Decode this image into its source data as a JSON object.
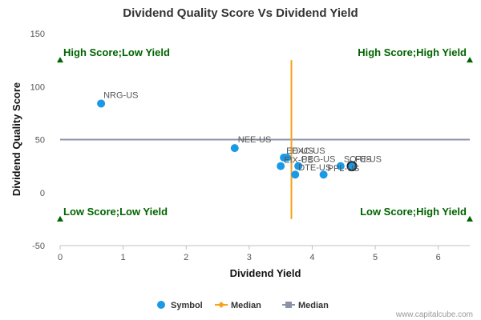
{
  "chart_data": {
    "type": "scatter",
    "title": "Dividend Quality Score Vs Dividend Yield",
    "xlabel": "Dividend Yield",
    "ylabel": "Dividend Quality Score",
    "xlim": [
      0,
      6.5
    ],
    "ylim": [
      -50,
      150
    ],
    "xticks": [
      0,
      1,
      2,
      3,
      4,
      5,
      6
    ],
    "yticks": [
      -50,
      0,
      50,
      100,
      150
    ],
    "grid": false,
    "points": [
      {
        "label": "NRG-US",
        "x": 0.65,
        "y": 84
      },
      {
        "label": "NEE-US",
        "x": 2.77,
        "y": 42
      },
      {
        "label": "ED-US",
        "x": 3.55,
        "y": 33
      },
      {
        "label": "EXC-US",
        "x": 3.6,
        "y": 33
      },
      {
        "label": "EIX-US",
        "x": 3.5,
        "y": 25
      },
      {
        "label": "PEG-US",
        "x": 3.78,
        "y": 25
      },
      {
        "label": "DTE-US",
        "x": 3.73,
        "y": 17
      },
      {
        "label": "PPL-US",
        "x": 4.18,
        "y": 17
      },
      {
        "label": "SO-US",
        "x": 4.45,
        "y": 25
      },
      {
        "label": "FE-US",
        "x": 4.63,
        "y": 25,
        "highlight": true
      }
    ],
    "median_x": 3.67,
    "median_x_range": [
      -25,
      125
    ],
    "median_y": 50,
    "quadrant_labels": {
      "top_left": "High Score;Low Yield",
      "top_right": "High Score;High Yield",
      "bottom_left": "Low Score;Low Yield",
      "bottom_right": "Low Score;High Yield"
    },
    "legend": [
      {
        "name": "Symbol",
        "kind": "circle",
        "color": "#1a9ae6"
      },
      {
        "name": "Median",
        "kind": "line-diamond",
        "color": "#f7a21b"
      },
      {
        "name": "Median",
        "kind": "line-square",
        "color": "#8b93a5"
      }
    ],
    "colors": {
      "points": "#1a9ae6",
      "median_vertical": "#f7a21b",
      "median_horizontal": "#8b93a5",
      "quadrant_text": "#006400",
      "marker": "#006400"
    }
  },
  "credit": "www.capitalcube.com"
}
